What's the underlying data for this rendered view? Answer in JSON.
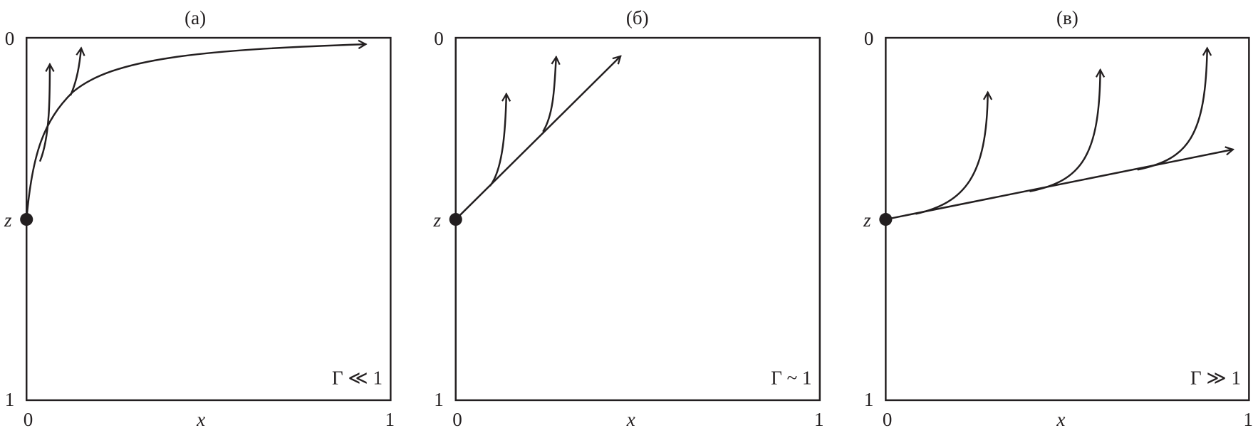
{
  "panels": [
    {
      "title": "(а)",
      "regime": "Γ ≪ 1",
      "y_top": "0",
      "y_mid": "z",
      "y_bottom": "1",
      "x_left": "0",
      "x_label": "x",
      "x_right": "1"
    },
    {
      "title": "(б)",
      "regime": "Γ ~ 1",
      "y_top": "0",
      "y_mid": "z",
      "y_bottom": "1",
      "x_left": "0",
      "x_label": "x",
      "x_right": "1"
    },
    {
      "title": "(в)",
      "regime": "Γ ≫ 1",
      "y_top": "0",
      "y_mid": "z",
      "y_bottom": "1",
      "x_left": "0",
      "x_label": "x",
      "x_right": "1"
    }
  ],
  "colors": {
    "ink": "#231f20",
    "background": "#ffffff"
  }
}
